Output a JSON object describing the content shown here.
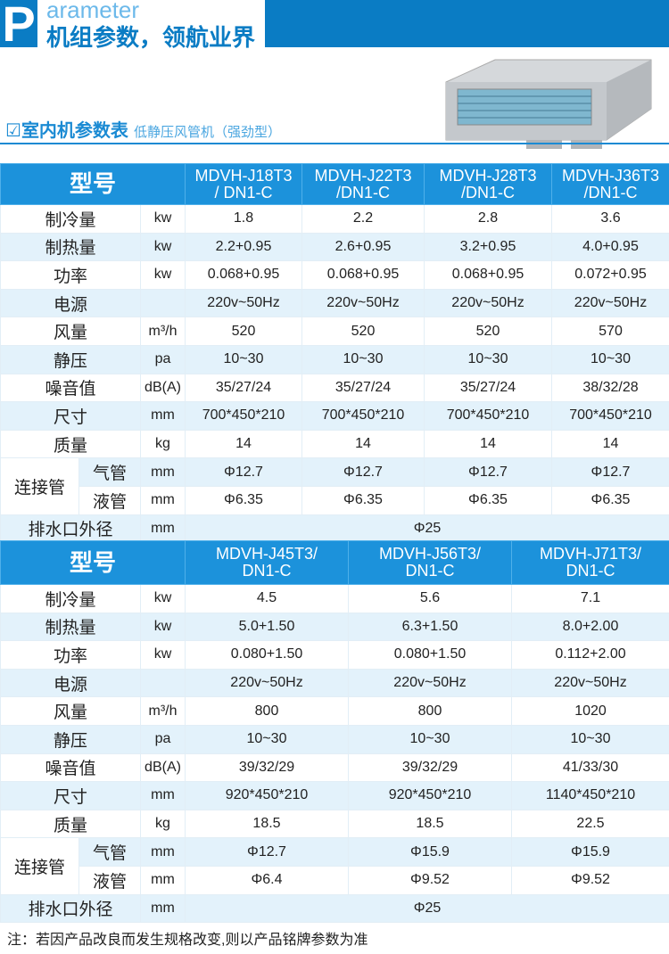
{
  "header": {
    "p_letter": "P",
    "word": "arameter",
    "title": "机组参数，领航业界"
  },
  "section": {
    "check_icon": "☑",
    "title": "室内机参数表",
    "subtitle": "低静压风管机（强劲型）"
  },
  "colors": {
    "brand": "#0a7cc4",
    "header_row": "#1c92db",
    "alt_row": "#e3f2fb"
  },
  "table1": {
    "model_label": "型号",
    "models": [
      "MDVH-J18T3\n/ DN1-C",
      "MDVH-J22T3\n/DN1-C",
      "MDVH-J28T3\n/DN1-C",
      "MDVH-J36T3\n/DN1-C"
    ],
    "rows": [
      {
        "label": "制冷量",
        "unit": "kw",
        "values": [
          "1.8",
          "2.2",
          "2.8",
          "3.6"
        ]
      },
      {
        "label": "制热量",
        "unit": "kw",
        "values": [
          "2.2+0.95",
          "2.6+0.95",
          "3.2+0.95",
          "4.0+0.95"
        ]
      },
      {
        "label": "功率",
        "unit": "kw",
        "values": [
          "0.068+0.95",
          "0.068+0.95",
          "0.068+0.95",
          "0.072+0.95"
        ]
      },
      {
        "label": "电源",
        "unit": "",
        "values": [
          "220v~50Hz",
          "220v~50Hz",
          "220v~50Hz",
          "220v~50Hz"
        ]
      },
      {
        "label": "风量",
        "unit": "m³/h",
        "values": [
          "520",
          "520",
          "520",
          "570"
        ]
      },
      {
        "label": "静压",
        "unit": "pa",
        "values": [
          "10~30",
          "10~30",
          "10~30",
          "10~30"
        ]
      },
      {
        "label": "噪音值",
        "unit": "dB(A)",
        "values": [
          "35/27/24",
          "35/27/24",
          "35/27/24",
          "38/32/28"
        ]
      },
      {
        "label": "尺寸",
        "unit": "mm",
        "values": [
          "700*450*210",
          "700*450*210",
          "700*450*210",
          "700*450*210"
        ]
      },
      {
        "label": "质量",
        "unit": "kg",
        "values": [
          "14",
          "14",
          "14",
          "14"
        ]
      }
    ],
    "pipe_label": "连接管",
    "gas": {
      "label": "气管",
      "unit": "mm",
      "values": [
        "Φ12.7",
        "Φ12.7",
        "Φ12.7",
        "Φ12.7"
      ]
    },
    "liquid": {
      "label": "液管",
      "unit": "mm",
      "values": [
        "Φ6.35",
        "Φ6.35",
        "Φ6.35",
        "Φ6.35"
      ]
    },
    "drain": {
      "label": "排水口外径",
      "unit": "mm",
      "value": "Φ25"
    }
  },
  "table2": {
    "model_label": "型号",
    "models": [
      "MDVH-J45T3/\nDN1-C",
      "MDVH-J56T3/\nDN1-C",
      "MDVH-J71T3/\nDN1-C"
    ],
    "rows": [
      {
        "label": "制冷量",
        "unit": "kw",
        "values": [
          "4.5",
          "5.6",
          "7.1"
        ]
      },
      {
        "label": "制热量",
        "unit": "kw",
        "values": [
          "5.0+1.50",
          "6.3+1.50",
          "8.0+2.00"
        ]
      },
      {
        "label": "功率",
        "unit": "kw",
        "values": [
          "0.080+1.50",
          "0.080+1.50",
          "0.112+2.00"
        ]
      },
      {
        "label": "电源",
        "unit": "",
        "values": [
          "220v~50Hz",
          "220v~50Hz",
          "220v~50Hz"
        ]
      },
      {
        "label": "风量",
        "unit": "m³/h",
        "values": [
          "800",
          "800",
          "1020"
        ]
      },
      {
        "label": "静压",
        "unit": "pa",
        "values": [
          "10~30",
          "10~30",
          "10~30"
        ]
      },
      {
        "label": "噪音值",
        "unit": "dB(A)",
        "values": [
          "39/32/29",
          "39/32/29",
          "41/33/30"
        ]
      },
      {
        "label": "尺寸",
        "unit": "mm",
        "values": [
          "920*450*210",
          "920*450*210",
          "1140*450*210"
        ]
      },
      {
        "label": "质量",
        "unit": "kg",
        "values": [
          "18.5",
          "18.5",
          "22.5"
        ]
      }
    ],
    "pipe_label": "连接管",
    "gas": {
      "label": "气管",
      "unit": "mm",
      "values": [
        "Φ12.7",
        "Φ15.9",
        "Φ15.9"
      ]
    },
    "liquid": {
      "label": "液管",
      "unit": "mm",
      "values": [
        "Φ6.4",
        "Φ9.52",
        "Φ9.52"
      ]
    },
    "drain": {
      "label": "排水口外径",
      "unit": "mm",
      "value": "Φ25"
    }
  },
  "note": "注：若因产品改良而发生规格改变,则以产品铭牌参数为准"
}
